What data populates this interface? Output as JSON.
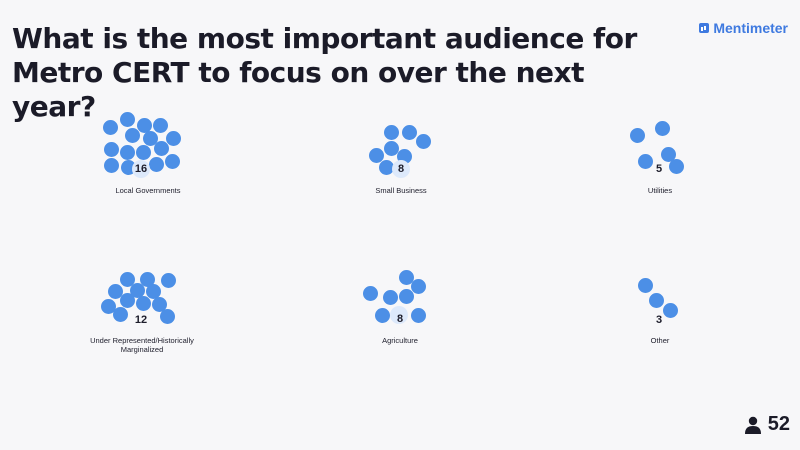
{
  "question": "What is the most important audience for Metro CERT to focus on over the next year?",
  "brand": "Mentimeter",
  "participant_count": "52",
  "colors": {
    "dot": "#4c8fe6",
    "accent": "#3f7ae0"
  },
  "options": [
    {
      "label": "Local Governments",
      "count": "16"
    },
    {
      "label": "Small Business",
      "count": "8"
    },
    {
      "label": "Utilities",
      "count": "5"
    },
    {
      "label": "Under Represented/Historically Marginalized",
      "count": "12"
    },
    {
      "label": "Agriculture",
      "count": "8"
    },
    {
      "label": "Other",
      "count": "3"
    }
  ]
}
